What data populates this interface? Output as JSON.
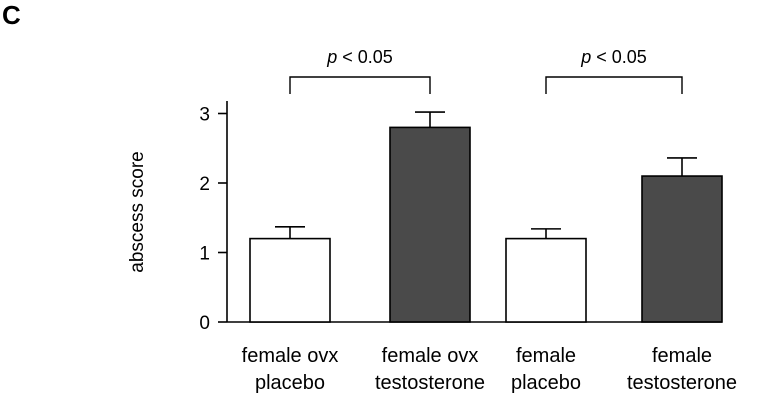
{
  "panel_label": "C",
  "chart_data": {
    "type": "bar",
    "ylabel": "abscess score",
    "xlabel": "",
    "ylim": [
      0,
      3.3
    ],
    "yticks": [
      0,
      1,
      2,
      3
    ],
    "grid": false,
    "categories": [
      [
        "female ovx",
        "placebo"
      ],
      [
        "female ovx",
        "testosterone"
      ],
      [
        "female",
        "placebo"
      ],
      [
        "female",
        "testosterone"
      ]
    ],
    "values": [
      1.2,
      2.8,
      1.2,
      2.1
    ],
    "errors": [
      0.17,
      0.22,
      0.14,
      0.26
    ],
    "colors": [
      "#ffffff",
      "#4a4a4a",
      "#ffffff",
      "#4a4a4a"
    ],
    "comparisons": [
      {
        "groups": [
          0,
          1
        ],
        "p_symbol": "p",
        "p_text": " < 0.05"
      },
      {
        "groups": [
          2,
          3
        ],
        "p_symbol": "p",
        "p_text": " < 0.05"
      }
    ]
  }
}
